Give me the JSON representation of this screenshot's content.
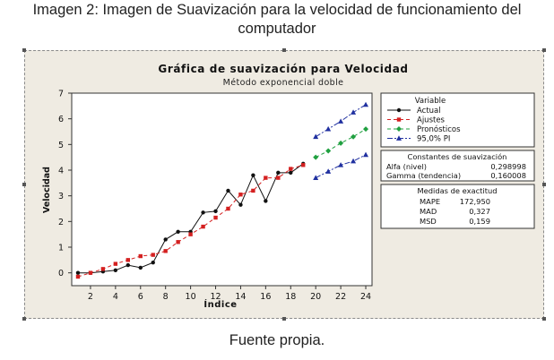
{
  "caption": {
    "title_line1": "Imagen 2: Imagen de Suavización para la velocidad de funcionamiento del",
    "title_line2": "computador",
    "source": "Fuente propia."
  },
  "chart_data": {
    "type": "line",
    "title": "Gráfica de suavización  para Velocidad",
    "subtitle": "Método exponencial doble",
    "xlabel": "Índice",
    "ylabel": "Velocidad",
    "xlim": [
      0.5,
      24.5
    ],
    "ylim": [
      -0.5,
      7
    ],
    "xticks": [
      2,
      4,
      6,
      8,
      10,
      12,
      14,
      16,
      18,
      20,
      22,
      24
    ],
    "yticks": [
      0,
      1,
      2,
      3,
      4,
      5,
      6,
      7
    ],
    "grid": false,
    "legend_placement": "right",
    "legend": {
      "title": "Variable",
      "entries": [
        "Actual",
        "Ajustes",
        "Pronósticos",
        "95,0% PI"
      ]
    },
    "series": [
      {
        "name": "Actual",
        "color": "#111111",
        "marker": "circle",
        "dash": "solid",
        "x": [
          1,
          2,
          3,
          4,
          5,
          6,
          7,
          8,
          9,
          10,
          11,
          12,
          13,
          14,
          15,
          16,
          17,
          18,
          19
        ],
        "y": [
          0.0,
          0.0,
          0.05,
          0.1,
          0.3,
          0.2,
          0.4,
          1.3,
          1.6,
          1.6,
          2.35,
          2.4,
          3.2,
          2.65,
          3.8,
          2.8,
          3.9,
          3.9,
          4.25
        ]
      },
      {
        "name": "Ajustes",
        "color": "#d42020",
        "marker": "square",
        "dash": "dashed",
        "x": [
          1,
          2,
          3,
          4,
          5,
          6,
          7,
          8,
          9,
          10,
          11,
          12,
          13,
          14,
          15,
          16,
          17,
          18,
          19
        ],
        "y": [
          -0.15,
          0.0,
          0.15,
          0.35,
          0.5,
          0.65,
          0.7,
          0.85,
          1.2,
          1.5,
          1.8,
          2.15,
          2.5,
          3.05,
          3.2,
          3.7,
          3.7,
          4.05,
          4.2
        ]
      },
      {
        "name": "Pronósticos",
        "color": "#20a040",
        "marker": "diamond",
        "dash": "dashed",
        "x": [
          20,
          21,
          22,
          23,
          24
        ],
        "y": [
          4.5,
          4.75,
          5.05,
          5.3,
          5.6
        ]
      },
      {
        "name": "95,0% PI (sup.)",
        "color": "#2030a0",
        "marker": "triangle",
        "dash": "dashdot",
        "x": [
          20,
          21,
          22,
          23,
          24
        ],
        "y": [
          5.3,
          5.6,
          5.9,
          6.25,
          6.55
        ]
      },
      {
        "name": "95,0% PI (inf.)",
        "color": "#2030a0",
        "marker": "triangle",
        "dash": "dashdot",
        "x": [
          20,
          21,
          22,
          23,
          24
        ],
        "y": [
          3.7,
          3.95,
          4.2,
          4.35,
          4.6
        ]
      }
    ],
    "smoothing_constants": {
      "title": "Constantes de suavización",
      "rows": [
        {
          "label": "Alfa (nivel)",
          "value": "0,298998"
        },
        {
          "label": "Gamma (tendencia)",
          "value": "0,160008"
        }
      ]
    },
    "accuracy_measures": {
      "title": "Medidas de exactitud",
      "rows": [
        {
          "label": "MAPE",
          "value": "172,950"
        },
        {
          "label": "MAD",
          "value": "0,327"
        },
        {
          "label": "MSD",
          "value": "0,159"
        }
      ]
    }
  }
}
